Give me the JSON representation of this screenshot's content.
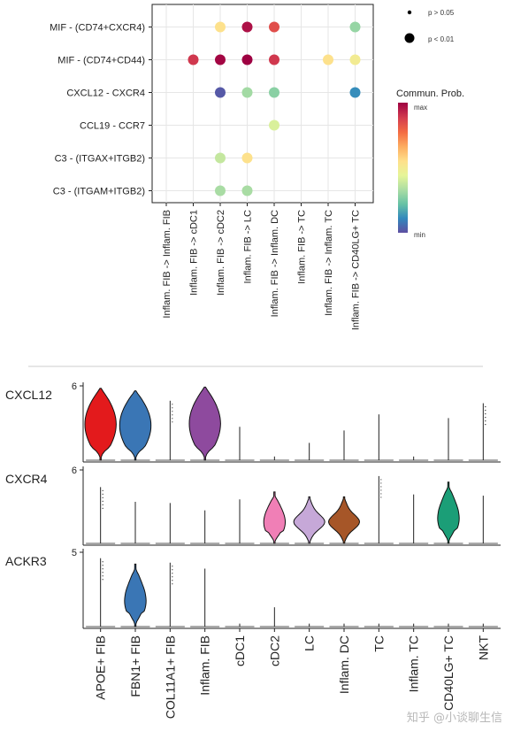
{
  "chart_data": [
    {
      "type": "scatter",
      "subtype": "dot-plot",
      "y_categories": [
        "MIF - (CD74+CXCR4)",
        "MIF - (CD74+CD44)",
        "CXCL12 - CXCR4",
        "CCL19 - CCR7",
        "C3 - (ITGAX+ITGB2)",
        "C3 - (ITGAM+ITGB2)"
      ],
      "x_categories": [
        "Inflam. FIB -> Inflam. FIB",
        "Inflam. FIB -> cDC1",
        "Inflam. FIB -> cDC2",
        "Inflam. FIB -> LC",
        "Inflam. FIB -> Inflam. DC",
        "Inflam. FIB -> TC",
        "Inflam. FIB -> Inflam. TC",
        "Inflam. FIB -> CD40LG+ TC"
      ],
      "points": [
        {
          "y": 0,
          "x": 2,
          "prob": 0.55
        },
        {
          "y": 0,
          "x": 3,
          "prob": 0.97
        },
        {
          "y": 0,
          "x": 4,
          "prob": 0.85
        },
        {
          "y": 0,
          "x": 7,
          "prob": 0.3
        },
        {
          "y": 1,
          "x": 1,
          "prob": 0.9
        },
        {
          "y": 1,
          "x": 2,
          "prob": 0.99
        },
        {
          "y": 1,
          "x": 3,
          "prob": 1.0
        },
        {
          "y": 1,
          "x": 4,
          "prob": 0.9
        },
        {
          "y": 1,
          "x": 6,
          "prob": 0.55
        },
        {
          "y": 1,
          "x": 7,
          "prob": 0.5
        },
        {
          "y": 2,
          "x": 2,
          "prob": 0.02
        },
        {
          "y": 2,
          "x": 3,
          "prob": 0.32
        },
        {
          "y": 2,
          "x": 4,
          "prob": 0.28
        },
        {
          "y": 2,
          "x": 7,
          "prob": 0.12
        },
        {
          "y": 3,
          "x": 4,
          "prob": 0.42
        },
        {
          "y": 4,
          "x": 2,
          "prob": 0.38
        },
        {
          "y": 4,
          "x": 3,
          "prob": 0.55
        },
        {
          "y": 5,
          "x": 2,
          "prob": 0.33
        },
        {
          "y": 5,
          "x": 3,
          "prob": 0.33
        }
      ],
      "legend": {
        "size_title": "",
        "size_entries": [
          "p > 0.05",
          "p < 0.01"
        ],
        "color_title": "Commun. Prob.",
        "color_max_label": "max",
        "color_min_label": "min",
        "placement": "right"
      },
      "grid": true
    },
    {
      "type": "violin",
      "categories": [
        "APOE+ FIB",
        "FBN1+ FIB",
        "COL11A1+ FIB",
        "Inflam. FIB",
        "cDC1",
        "cDC2",
        "LC",
        "Inflam. DC",
        "TC",
        "Inflam. TC",
        "CD40LG+ TC",
        "NKT"
      ],
      "panels": [
        {
          "gene": "CXCL12",
          "y_tick": "6",
          "ymax": 6,
          "violins": [
            {
              "cat": 0,
              "color": "#e31a1c",
              "max": 5.8
            },
            {
              "cat": 1,
              "color": "#3a76b5",
              "max": 5.6
            },
            {
              "cat": 2,
              "color": "",
              "max": 4.8
            },
            {
              "cat": 3,
              "color": "#8e4a9e",
              "max": 5.9
            },
            {
              "cat": 4,
              "color": "",
              "max": 2.7
            },
            {
              "cat": 5,
              "color": "",
              "max": 0.3
            },
            {
              "cat": 6,
              "color": "",
              "max": 1.4
            },
            {
              "cat": 7,
              "color": "",
              "max": 2.4
            },
            {
              "cat": 8,
              "color": "",
              "max": 3.7
            },
            {
              "cat": 9,
              "color": "",
              "max": 0.3
            },
            {
              "cat": 10,
              "color": "",
              "max": 3.4
            },
            {
              "cat": 11,
              "color": "",
              "max": 4.6
            }
          ]
        },
        {
          "gene": "CXCR4",
          "y_tick": "6",
          "ymax": 6,
          "violins": [
            {
              "cat": 0,
              "color": "",
              "max": 4.6
            },
            {
              "cat": 1,
              "color": "",
              "max": 3.4
            },
            {
              "cat": 2,
              "color": "",
              "max": 3.3
            },
            {
              "cat": 3,
              "color": "",
              "max": 2.7
            },
            {
              "cat": 4,
              "color": "",
              "max": 3.6
            },
            {
              "cat": 5,
              "color": "#f07fb6",
              "max": 4.2
            },
            {
              "cat": 6,
              "color": "#c6a8d8",
              "max": 3.8
            },
            {
              "cat": 7,
              "color": "#a65628",
              "max": 3.8
            },
            {
              "cat": 8,
              "color": "",
              "max": 5.5
            },
            {
              "cat": 9,
              "color": "",
              "max": 4.0
            },
            {
              "cat": 10,
              "color": "#1b9e77",
              "max": 5.0
            },
            {
              "cat": 11,
              "color": "",
              "max": 3.9
            }
          ]
        },
        {
          "gene": "ACKR3",
          "y_tick": "5",
          "ymax": 5,
          "violins": [
            {
              "cat": 0,
              "color": "",
              "max": 4.6
            },
            {
              "cat": 1,
              "color": "#3a76b5",
              "max": 4.2
            },
            {
              "cat": 2,
              "color": "",
              "max": 4.3
            },
            {
              "cat": 3,
              "color": "",
              "max": 3.9
            },
            {
              "cat": 4,
              "color": "",
              "max": 0.2
            },
            {
              "cat": 5,
              "color": "",
              "max": 1.3
            },
            {
              "cat": 6,
              "color": "",
              "max": 0.2
            },
            {
              "cat": 7,
              "color": "",
              "max": 0.2
            },
            {
              "cat": 8,
              "color": "",
              "max": 0.2
            },
            {
              "cat": 9,
              "color": "",
              "max": 0.2
            },
            {
              "cat": 10,
              "color": "",
              "max": 0.2
            },
            {
              "cat": 11,
              "color": "",
              "max": 0.2
            }
          ]
        }
      ]
    }
  ],
  "watermark": "知乎 @小谈聊生信",
  "colors": {
    "palette_spectral": [
      "#5e4fa2",
      "#3288bd",
      "#66c2a5",
      "#abdda4",
      "#e6f598",
      "#fee08b",
      "#fdae61",
      "#f46d43",
      "#d53e4f",
      "#9e0142"
    ]
  }
}
